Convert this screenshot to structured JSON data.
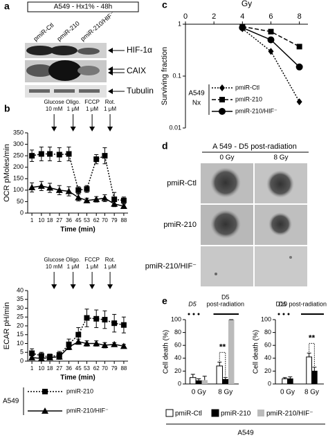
{
  "panel_letters": [
    "a",
    "b",
    "c",
    "d",
    "e"
  ],
  "blot": {
    "header": "A549 - Hx1% - 48h",
    "lanes": [
      "pmiR-Ctl",
      "pmiR-210",
      "pmiR-210/HIF⁻"
    ],
    "proteins": [
      "HIF-1α",
      "CAIX",
      "Tubulin"
    ]
  },
  "imaging": {
    "title": "A 549 - D5 post-radiation",
    "columns": [
      "0 Gy",
      "8 Gy"
    ],
    "rows": [
      "pmiR-Ctl",
      "pmiR-210",
      "pmiR-210/HIF⁻"
    ]
  },
  "chart_data": [
    {
      "type": "line",
      "ylabel": "OCR pMoles/min",
      "xlabel": "Time (min)",
      "x": [
        1,
        10,
        18,
        27,
        36,
        45,
        53,
        62,
        70,
        79,
        88
      ],
      "xlim": [
        -3,
        92
      ],
      "xticks": [
        1,
        10,
        18,
        27,
        36,
        45,
        53,
        62,
        70,
        79,
        88
      ],
      "ylim": [
        0,
        350
      ],
      "yticks": [
        0,
        50,
        100,
        150,
        200,
        250,
        300,
        350
      ],
      "treatments": [
        {
          "name": "Glucose",
          "dose": "10 mM",
          "at": 22
        },
        {
          "name": "Oligo.",
          "dose": "1 μM",
          "at": 40
        },
        {
          "name": "FCCP",
          "dose": "1 μM",
          "at": 58
        },
        {
          "name": "Rot.",
          "dose": "1 μM",
          "at": 75
        }
      ],
      "series": [
        {
          "color": "#000000",
          "style": "dotted",
          "marker": "square",
          "values": [
            250,
            258,
            258,
            255,
            258,
            100,
            105,
            235,
            250,
            60,
            55
          ],
          "errors": [
            25,
            30,
            30,
            30,
            30,
            15,
            15,
            20,
            35,
            30,
            15
          ]
        },
        {
          "color": "#000000",
          "style": "solid",
          "marker": "triangle",
          "values": [
            112,
            118,
            110,
            100,
            95,
            68,
            55,
            60,
            65,
            40,
            30
          ],
          "errors": [
            20,
            20,
            20,
            20,
            20,
            15,
            10,
            12,
            15,
            12,
            10
          ]
        }
      ]
    },
    {
      "type": "line",
      "ylabel": "ECAR pH/min",
      "xlabel": "Time (min)",
      "x": [
        1,
        10,
        18,
        27,
        36,
        45,
        53,
        62,
        70,
        79,
        88
      ],
      "xlim": [
        -3,
        92
      ],
      "xticks": [
        1,
        10,
        18,
        27,
        36,
        45,
        53,
        62,
        70,
        79,
        88
      ],
      "ylim": [
        0,
        40
      ],
      "yticks": [
        0,
        5,
        10,
        15,
        20,
        25,
        30,
        35,
        40
      ],
      "treatments": [
        {
          "name": "Glucose",
          "dose": "10 mM",
          "at": 22
        },
        {
          "name": "Oligo.",
          "dose": "1 μM",
          "at": 40
        },
        {
          "name": "FCCP",
          "dose": "1 μM",
          "at": 58
        },
        {
          "name": "Rot.",
          "dose": "1 μM",
          "at": 75
        }
      ],
      "legend_title": "A549",
      "series": [
        {
          "name": "pmiR-210",
          "color": "#000000",
          "style": "dotted",
          "marker": "square",
          "values": [
            4.5,
            3,
            2.5,
            3.5,
            9.5,
            15,
            24.5,
            24,
            23.5,
            21.5,
            20.5
          ],
          "errors": [
            2.5,
            2,
            1.5,
            2,
            3,
            4,
            5,
            5,
            5,
            5,
            4.5
          ]
        },
        {
          "name": "pmiR-210/HIF⁻",
          "color": "#000000",
          "style": "solid",
          "marker": "triangle",
          "values": [
            2,
            1.5,
            2,
            2.5,
            8,
            11,
            10,
            10,
            9,
            9.5,
            8.5
          ],
          "errors": [
            1,
            1,
            1,
            1.5,
            1.5,
            1.5,
            1.5,
            1.5,
            1.5,
            1,
            1
          ]
        }
      ]
    },
    {
      "type": "line",
      "log": true,
      "xaxis": "top",
      "xlabel": "Gy",
      "ylabel": "Surviving fraction",
      "x": [
        4,
        6,
        8
      ],
      "xlim": [
        0,
        8.6
      ],
      "xticks": [
        0,
        2,
        4,
        6,
        8
      ],
      "ylim": [
        0.01,
        1
      ],
      "yticks": [
        0.01,
        0.1,
        1
      ],
      "legend_title": [
        "A549",
        "Nx"
      ],
      "series": [
        {
          "name": "pmiR-Ctl",
          "color": "#000000",
          "style": "dotted",
          "marker": "diamond",
          "values": [
            0.82,
            0.3,
            0.032
          ]
        },
        {
          "name": "pmiR-210",
          "color": "#000000",
          "style": "dashed",
          "marker": "square",
          "values": [
            0.9,
            0.72,
            0.37
          ]
        },
        {
          "name": "pmiR-210/HIF⁻",
          "color": "#000000",
          "style": "solid",
          "marker": "circle",
          "values": [
            0.86,
            0.5,
            0.15
          ]
        }
      ]
    },
    {
      "type": "bar",
      "ylabel": "Cell death (%)",
      "categories": [
        "0 Gy",
        "8 Gy"
      ],
      "ylim": [
        0,
        100
      ],
      "yticks": [
        0,
        20,
        40,
        60,
        80,
        100
      ],
      "period_label": "D5",
      "treatment_label": [
        "D5",
        "post-radiation"
      ],
      "significance": "**",
      "legend_title": "A549",
      "series": [
        {
          "name": "pmiR-Ctl",
          "color": "#ffffff",
          "values": [
            10,
            28
          ],
          "errors": [
            5,
            6
          ]
        },
        {
          "name": "pmiR-210",
          "color": "#000000",
          "values": [
            5,
            7
          ],
          "errors": [
            3,
            3
          ]
        },
        {
          "name": "pmiR-210/HIF⁻",
          "color": "#bbbbbb",
          "values": [
            6,
            100
          ],
          "errors": [
            6,
            0
          ]
        }
      ]
    },
    {
      "type": "bar",
      "ylabel": "Cell death (%)",
      "categories": [
        "0 Gy",
        "8 Gy"
      ],
      "ylim": [
        0,
        100
      ],
      "yticks": [
        0,
        20,
        40,
        60,
        80,
        100
      ],
      "period_label": "D5",
      "treatment_label": [
        "D10 post-radiation"
      ],
      "significance": "**",
      "series": [
        {
          "color": "#ffffff",
          "values": [
            8,
            42
          ],
          "errors": [
            2,
            6
          ]
        },
        {
          "color": "#000000",
          "values": [
            8,
            20
          ],
          "errors": [
            3,
            6
          ]
        }
      ]
    }
  ]
}
